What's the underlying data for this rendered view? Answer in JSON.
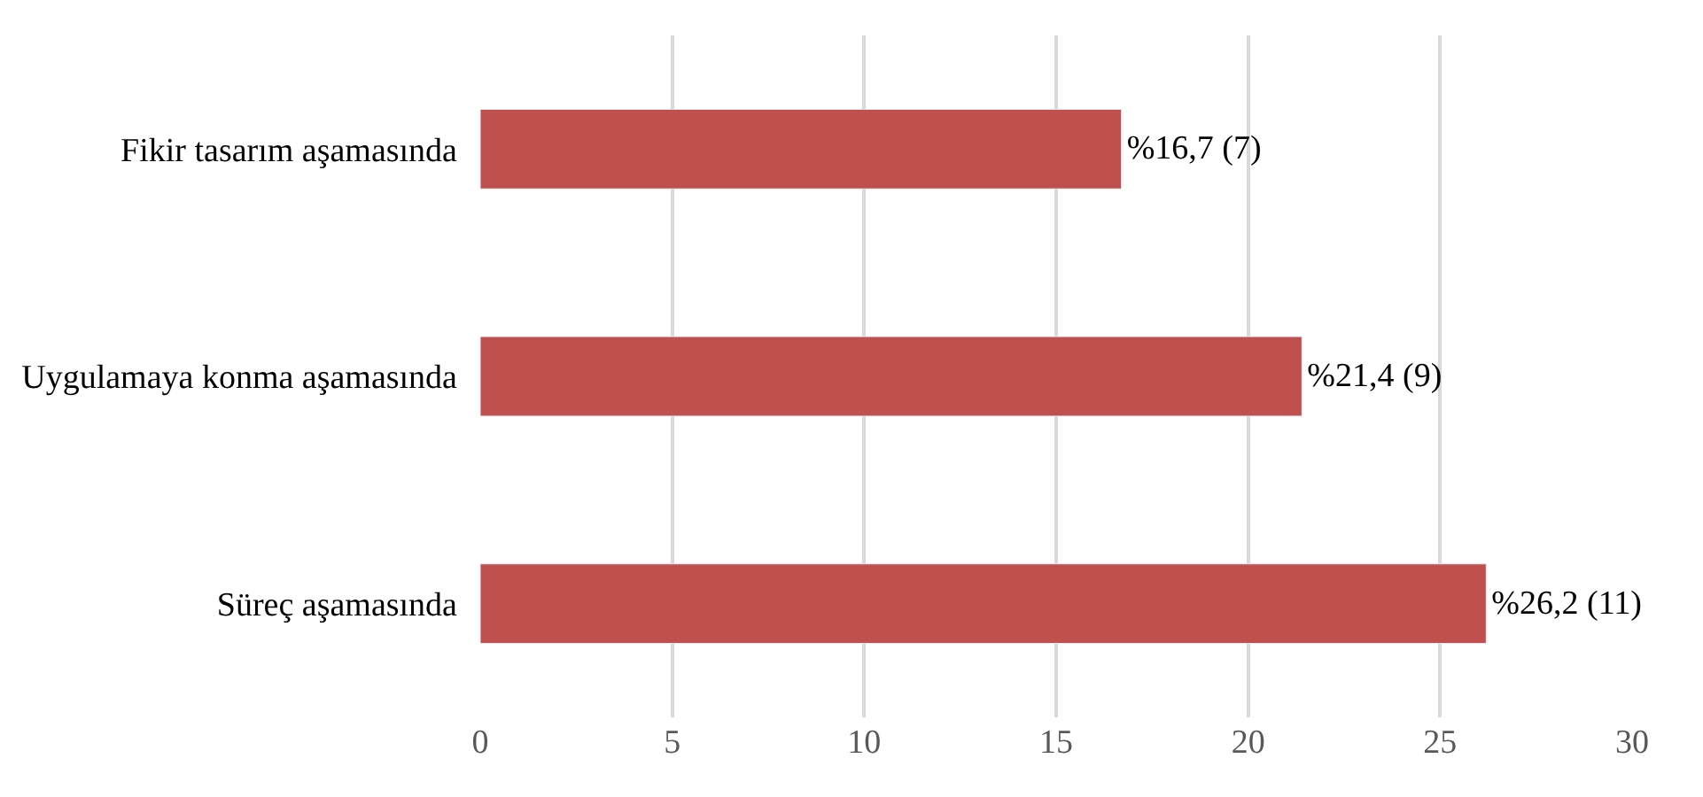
{
  "chart_data": {
    "type": "bar",
    "orientation": "horizontal",
    "categories": [
      "Fikir tasarım aşamasında",
      "Uygulamaya konma aşamasında",
      "Süreç aşamasında"
    ],
    "values": [
      16.7,
      21.4,
      26.2
    ],
    "value_labels": [
      "%16,7 (7)",
      "%21,4 (9)",
      "%26,2 (11)"
    ],
    "color": "#c0504d",
    "xlim": [
      0,
      30
    ],
    "xticks": [
      0,
      5,
      10,
      15,
      20,
      25,
      30
    ],
    "grid": "x"
  }
}
